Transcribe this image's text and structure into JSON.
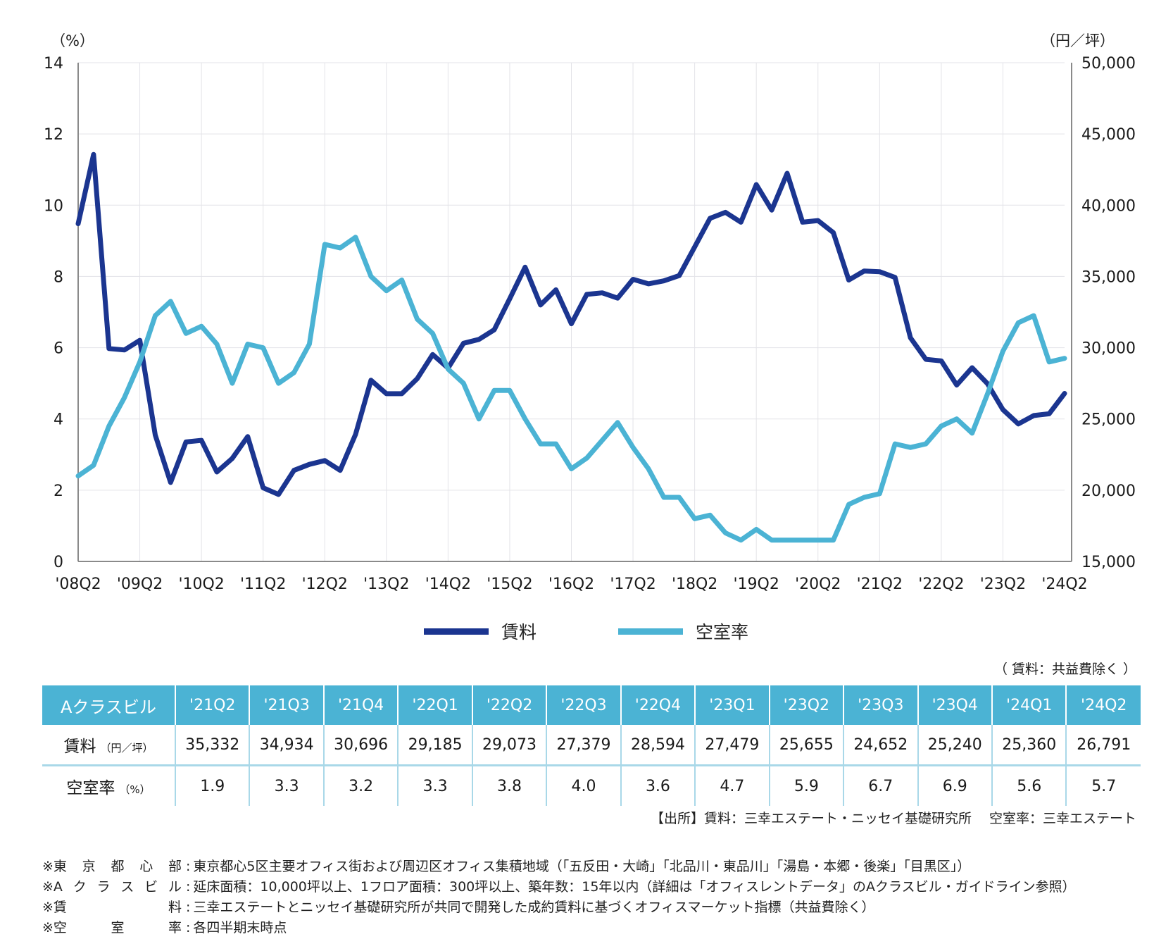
{
  "chart_data": {
    "type": "line",
    "title": "",
    "x": [
      "'08Q2",
      "'08Q3",
      "'08Q4",
      "'09Q1",
      "'09Q2",
      "'09Q3",
      "'09Q4",
      "'10Q1",
      "'10Q2",
      "'10Q3",
      "'10Q4",
      "'11Q1",
      "'11Q2",
      "'11Q3",
      "'11Q4",
      "'12Q1",
      "'12Q2",
      "'12Q3",
      "'12Q4",
      "'13Q1",
      "'13Q2",
      "'13Q3",
      "'13Q4",
      "'14Q1",
      "'14Q2",
      "'14Q3",
      "'14Q4",
      "'15Q1",
      "'15Q2",
      "'15Q3",
      "'15Q4",
      "'16Q1",
      "'16Q2",
      "'16Q3",
      "'16Q4",
      "'17Q1",
      "'17Q2",
      "'17Q3",
      "'17Q4",
      "'18Q1",
      "'18Q2",
      "'18Q3",
      "'18Q4",
      "'19Q1",
      "'19Q2",
      "'19Q3",
      "'19Q4",
      "'20Q1",
      "'20Q2",
      "'20Q3",
      "'20Q4",
      "'21Q1",
      "'21Q2",
      "'21Q3",
      "'21Q4",
      "'22Q1",
      "'22Q2",
      "'22Q3",
      "'22Q4",
      "'23Q1",
      "'23Q2",
      "'23Q3",
      "'23Q4",
      "'24Q1",
      "'24Q2"
    ],
    "x_tick_labels": [
      "'08Q2",
      "'09Q2",
      "'10Q2",
      "'11Q2",
      "'12Q2",
      "'13Q2",
      "'14Q2",
      "'15Q2",
      "'16Q2",
      "'17Q2",
      "'18Q2",
      "'19Q2",
      "'20Q2",
      "'21Q2",
      "'22Q2",
      "'23Q2",
      "'24Q2"
    ],
    "series": [
      {
        "name": "賃料",
        "axis": "right",
        "color": "#1b3590",
        "values": [
          38700,
          43560,
          29940,
          29840,
          30520,
          23870,
          20540,
          23390,
          23500,
          21280,
          22230,
          23760,
          20170,
          19700,
          21390,
          21810,
          22080,
          21390,
          23920,
          27720,
          26770,
          26770,
          27830,
          29520,
          28570,
          30310,
          30580,
          31260,
          33430,
          35650,
          33000,
          34060,
          31680,
          33740,
          33850,
          33480,
          34800,
          34480,
          34690,
          35060,
          37070,
          39080,
          39500,
          38810,
          41450,
          39660,
          42240,
          38810,
          38920,
          38070,
          34750,
          35380,
          35332,
          34934,
          30696,
          29185,
          29073,
          27379,
          28594,
          27479,
          25655,
          24652,
          25240,
          25360,
          26791
        ]
      },
      {
        "name": "空室率",
        "axis": "left",
        "color": "#4bb3d4",
        "values": [
          2.4,
          2.7,
          3.8,
          4.6,
          5.6,
          6.9,
          7.3,
          6.4,
          6.6,
          6.1,
          5.0,
          6.1,
          6.0,
          5.0,
          5.3,
          6.1,
          8.9,
          8.8,
          9.1,
          8.0,
          7.6,
          7.9,
          6.8,
          6.4,
          5.4,
          5.0,
          4.0,
          4.8,
          4.8,
          4.0,
          3.3,
          3.3,
          2.6,
          2.9,
          3.4,
          3.9,
          3.2,
          2.6,
          1.8,
          1.8,
          1.2,
          1.3,
          0.8,
          0.6,
          0.9,
          0.6,
          0.6,
          0.6,
          0.6,
          0.6,
          1.6,
          1.8,
          1.9,
          3.3,
          3.2,
          3.3,
          3.8,
          4.0,
          3.6,
          4.7,
          5.9,
          6.7,
          6.9,
          5.6,
          5.7
        ]
      }
    ],
    "y_left": {
      "label": "（%）",
      "ylim": [
        0,
        14
      ],
      "ticks": [
        "0",
        "2",
        "4",
        "6",
        "8",
        "10",
        "12",
        "14"
      ]
    },
    "y_right": {
      "label": "（円／坪）",
      "ylim": [
        15000,
        50000
      ],
      "ticks": [
        "15,000",
        "20,000",
        "25,000",
        "30,000",
        "35,000",
        "40,000",
        "45,000",
        "50,000"
      ]
    },
    "grid": true,
    "legend": {
      "placement": "bottom-center",
      "entries": [
        "賃料",
        "空室率"
      ]
    }
  },
  "note_top": "（ 賃料：共益費除く ）",
  "table": {
    "corner": "Aクラスビル",
    "columns": [
      "'21Q2",
      "'21Q3",
      "'21Q4",
      "'22Q1",
      "'22Q2",
      "'22Q3",
      "'22Q4",
      "'23Q1",
      "'23Q2",
      "'23Q3",
      "'23Q4",
      "'24Q1",
      "'24Q2"
    ],
    "rows": [
      {
        "label": "賃料",
        "unit": "（円／坪）",
        "values": [
          "35,332",
          "34,934",
          "30,696",
          "29,185",
          "29,073",
          "27,379",
          "28,594",
          "27,479",
          "25,655",
          "24,652",
          "25,240",
          "25,360",
          "26,791"
        ]
      },
      {
        "label": "空室率",
        "unit": "（%）",
        "values": [
          "1.9",
          "3.3",
          "3.2",
          "3.3",
          "3.8",
          "4.0",
          "3.6",
          "4.7",
          "5.9",
          "6.7",
          "6.9",
          "5.6",
          "5.7"
        ]
      }
    ]
  },
  "source": "【出所】賃料：三幸エステート・ニッセイ基礎研究所　 空室率：三幸エステート",
  "footnotes": [
    {
      "key": [
        "※東",
        "京",
        "都",
        "心",
        "部"
      ],
      "text": "東京都心5区主要オフィス街および周辺区オフィス集積地域（「五反田・大崎」「北品川・東品川」「湯島・本郷・後楽」「目黒区」）"
    },
    {
      "key": [
        "※A",
        "ク",
        "ラ",
        "ス",
        "ビ",
        "ル"
      ],
      "text": "延床面積：10,000坪以上、1フロア面積：300坪以上、築年数：15年以内（詳細は「オフィスレントデータ」のAクラスビル・ガイドライン参照）"
    },
    {
      "key": [
        "※賃",
        "料"
      ],
      "text": "三幸エステートとニッセイ基礎研究所が共同で開発した成約賃料に基づくオフィスマーケット指標（共益費除く）"
    },
    {
      "key": [
        "※空",
        "室",
        "率"
      ],
      "text": "各四半期末時点"
    }
  ]
}
